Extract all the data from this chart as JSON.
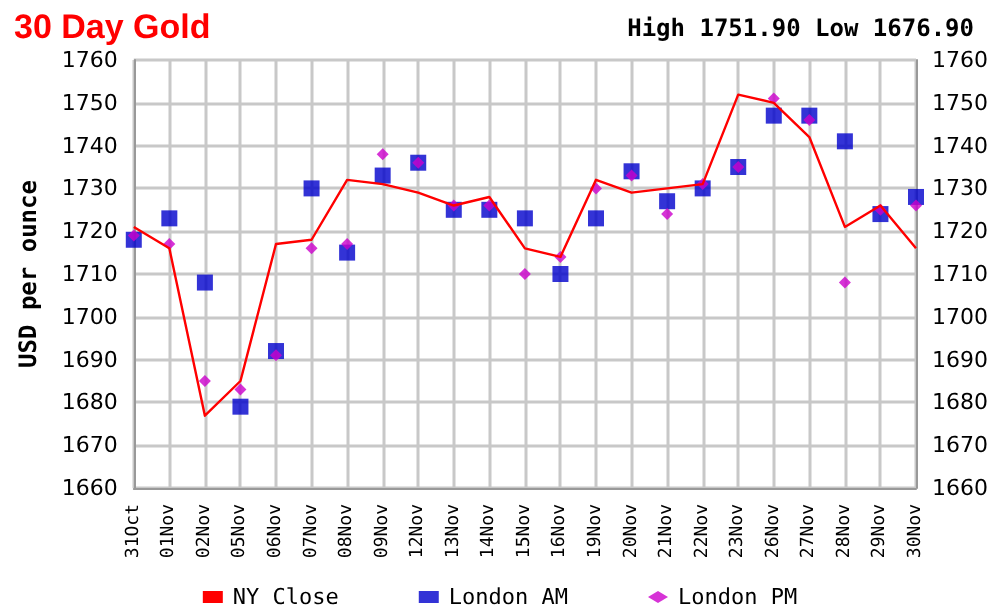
{
  "chart_data": {
    "type": "line",
    "title": "30 Day Gold",
    "subtitle": "High 1751.90 Low 1676.90",
    "ylabel": "USD per ounce",
    "categories": [
      "31Oct",
      "01Nov",
      "02Nov",
      "05Nov",
      "06Nov",
      "07Nov",
      "08Nov",
      "09Nov",
      "12Nov",
      "13Nov",
      "14Nov",
      "15Nov",
      "16Nov",
      "19Nov",
      "20Nov",
      "21Nov",
      "22Nov",
      "23Nov",
      "26Nov",
      "27Nov",
      "28Nov",
      "29Nov",
      "30Nov"
    ],
    "series": [
      {
        "name": "NY Close",
        "color": "#ff0000",
        "marker": "none",
        "line_style": "solid",
        "values": [
          1721,
          1716,
          1676.9,
          1685,
          1717,
          1718,
          1732,
          1731,
          1729,
          1726,
          1728,
          1716,
          1714,
          1732,
          1729,
          1730,
          1731,
          1751.9,
          1750,
          1742,
          1721,
          1726,
          1716
        ]
      },
      {
        "name": "London AM",
        "type": "scatter",
        "color": "#0000cc",
        "marker": "square",
        "values": [
          1718,
          1723,
          1708,
          1679,
          1692,
          1730,
          1715,
          1733,
          1736,
          1725,
          1725,
          1723,
          1710,
          1723,
          1734,
          1727,
          1730,
          1735,
          1747,
          1747,
          1741,
          1724,
          1728
        ]
      },
      {
        "name": "London PM",
        "type": "scatter",
        "color": "#cc00cc",
        "marker": "diamond",
        "values": [
          1719,
          1717,
          1685,
          1683,
          1691,
          1716,
          1717,
          1738,
          1736,
          1726,
          1726,
          1710,
          1714,
          1730,
          1733,
          1724,
          1731,
          1735,
          1751,
          1746,
          1708,
          1725,
          1726
        ]
      }
    ],
    "ylim": [
      1660,
      1760
    ],
    "yticks": [
      1660,
      1670,
      1680,
      1690,
      1700,
      1710,
      1720,
      1730,
      1740,
      1750,
      1760
    ],
    "y2lim": [
      1660,
      1760
    ],
    "y2ticks": [
      1660,
      1670,
      1680,
      1690,
      1700,
      1710,
      1720,
      1730,
      1740,
      1750,
      1760
    ],
    "grid": true,
    "legend": "bottom"
  }
}
